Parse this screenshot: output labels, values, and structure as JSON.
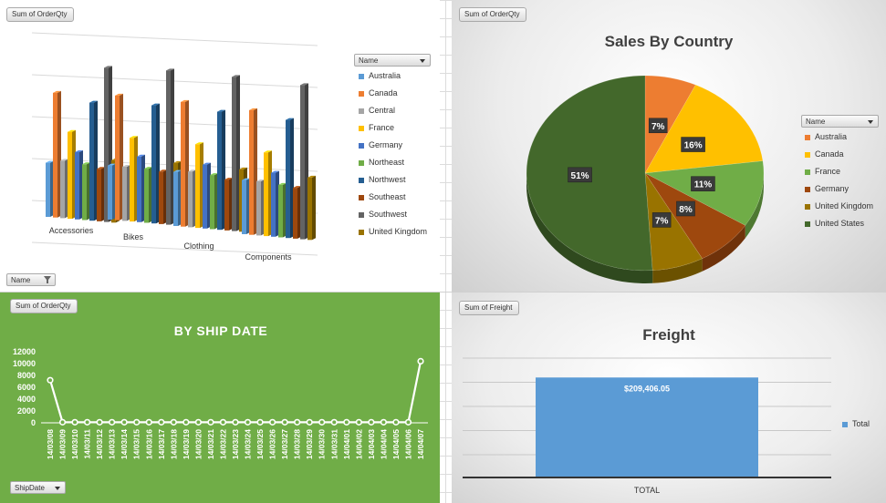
{
  "bar_panel": {
    "field_button": "Sum of OrderQty",
    "legend_header": "Name",
    "filter_button": "Name"
  },
  "pie_panel": {
    "field_button": "Sum of OrderQty",
    "legend_header": "Name"
  },
  "line_panel": {
    "field_button": "Sum of OrderQty",
    "axis_button": "ShipDate"
  },
  "freight_panel": {
    "field_button": "Sum of Freight"
  },
  "chart_data": [
    {
      "type": "bar",
      "style": "3d-clustered-column",
      "title": "",
      "categories": [
        "Accessories",
        "Bikes",
        "Clothing",
        "Components"
      ],
      "series": [
        {
          "name": "Australia",
          "color": "#5b9bd5",
          "values": [
            33,
            33,
            33,
            33
          ]
        },
        {
          "name": "Canada",
          "color": "#ed7d31",
          "values": [
            76,
            76,
            76,
            76
          ]
        },
        {
          "name": "Central",
          "color": "#a5a5a5",
          "values": [
            35,
            33,
            34,
            33
          ]
        },
        {
          "name": "France",
          "color": "#ffc000",
          "values": [
            53,
            51,
            51,
            51
          ]
        },
        {
          "name": "Germany",
          "color": "#4472c4",
          "values": [
            41,
            40,
            39,
            39
          ]
        },
        {
          "name": "Northeast",
          "color": "#70ad47",
          "values": [
            34,
            33,
            33,
            32
          ]
        },
        {
          "name": "Northwest",
          "color": "#255e91",
          "values": [
            72,
            72,
            72,
            72
          ]
        },
        {
          "name": "Southeast",
          "color": "#9e480e",
          "values": [
            32,
            32,
            31,
            31
          ]
        },
        {
          "name": "Southwest",
          "color": "#636363",
          "values": [
            94,
            94,
            94,
            94
          ]
        },
        {
          "name": "United Kingdom",
          "color": "#997300",
          "values": [
            38,
            38,
            38,
            38
          ]
        }
      ],
      "legend": "right",
      "grid": true
    },
    {
      "type": "pie",
      "style": "3d-pie",
      "title": "Sales By Country",
      "slices": [
        {
          "name": "Australia",
          "color": "#ed7d31",
          "value": 7,
          "label": "7%"
        },
        {
          "name": "Canada",
          "color": "#ffc000",
          "value": 16,
          "label": "16%"
        },
        {
          "name": "France",
          "color": "#70ad47",
          "value": 11,
          "label": "11%"
        },
        {
          "name": "Germany",
          "color": "#9e480e",
          "value": 8,
          "label": "8%"
        },
        {
          "name": "United Kingdom",
          "color": "#997300",
          "value": 7,
          "label": "7%"
        },
        {
          "name": "United States",
          "color": "#43682b",
          "value": 51,
          "label": "51%"
        }
      ],
      "legend": "right"
    },
    {
      "type": "line",
      "title": "BY SHIP DATE",
      "x": [
        "14/03/08",
        "14/03/09",
        "14/03/10",
        "14/03/11",
        "14/03/12",
        "14/03/13",
        "14/03/14",
        "14/03/15",
        "14/03/16",
        "14/03/17",
        "14/03/18",
        "14/03/19",
        "14/03/20",
        "14/03/21",
        "14/03/22",
        "14/03/23",
        "14/03/24",
        "14/03/25",
        "14/03/26",
        "14/03/27",
        "14/03/28",
        "14/03/29",
        "14/03/30",
        "14/03/31",
        "14/04/01",
        "14/04/02",
        "14/04/03",
        "14/04/04",
        "14/04/05",
        "14/04/06",
        "14/04/07"
      ],
      "y": [
        7200,
        100,
        100,
        100,
        100,
        100,
        100,
        100,
        100,
        100,
        100,
        100,
        100,
        100,
        100,
        100,
        100,
        100,
        100,
        100,
        100,
        100,
        100,
        100,
        100,
        100,
        100,
        100,
        100,
        100,
        10400
      ],
      "yticks": [
        "0",
        "2000",
        "4000",
        "6000",
        "8000",
        "10000",
        "12000"
      ],
      "ylim": [
        0,
        12000
      ],
      "color": "#ffffff",
      "grid": false
    },
    {
      "type": "bar",
      "title": "Freight",
      "categories": [
        "TOTAL"
      ],
      "series": [
        {
          "name": "Total",
          "color": "#5b9bd5",
          "values": [
            209406.05
          ]
        }
      ],
      "data_label": "$209,406.05",
      "legend": "right",
      "grid": true
    }
  ]
}
